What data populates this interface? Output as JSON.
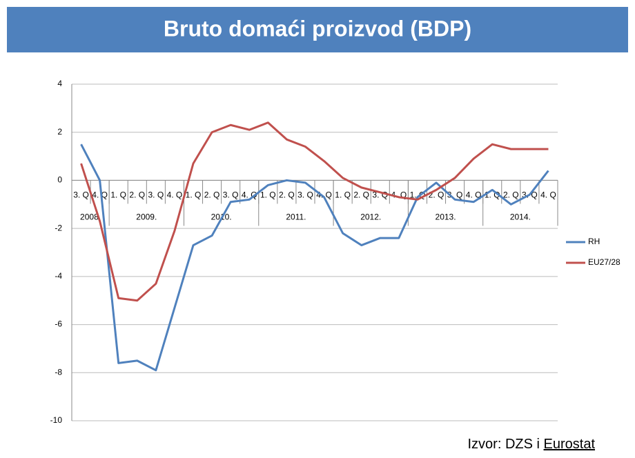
{
  "title": "Bruto domaći proizvod (BDP)",
  "source": "Izvor: DZS i",
  "source_link": "Eurostat",
  "chart_data": {
    "type": "line",
    "categories": [
      "3. Q",
      "4. Q",
      "1. Q",
      "2. Q",
      "3. Q",
      "4. Q",
      "1. Q",
      "2. Q",
      "3. Q",
      "4. Q",
      "1. Q",
      "2. Q",
      "3. Q",
      "4. Q",
      "1. Q",
      "2. Q",
      "3. Q",
      "4. Q",
      "1. Q",
      "2. Q",
      "3. Q",
      "4. Q",
      "1. Q",
      "2. Q",
      "3. Q",
      "4. Q"
    ],
    "category_groups": [
      {
        "label": "2008.",
        "size": 2
      },
      {
        "label": "2009.",
        "size": 4
      },
      {
        "label": "2010.",
        "size": 4
      },
      {
        "label": "2011.",
        "size": 4
      },
      {
        "label": "2012.",
        "size": 4
      },
      {
        "label": "2013.",
        "size": 4
      },
      {
        "label": "2014.",
        "size": 4
      }
    ],
    "series": [
      {
        "name": "RH",
        "color": "#4f81bd",
        "values": [
          1.5,
          0,
          -7.6,
          -7.5,
          -7.9,
          -5.3,
          -2.7,
          -2.3,
          -0.9,
          -0.8,
          -0.2,
          0,
          -0.1,
          -0.7,
          -2.2,
          -2.7,
          -2.4,
          -2.4,
          -0.7,
          -0.1,
          -0.8,
          -0.9,
          -0.4,
          -1.0,
          -0.6,
          0.4
        ]
      },
      {
        "name": "EU27/28",
        "color": "#c0504d",
        "values": [
          0.7,
          -1.7,
          -4.9,
          -5.0,
          -4.3,
          -2.1,
          0.7,
          2.0,
          2.3,
          2.1,
          2.4,
          1.7,
          1.4,
          0.8,
          0.1,
          -0.3,
          -0.5,
          -0.7,
          -0.8,
          -0.4,
          0.1,
          0.9,
          1.5,
          1.3,
          1.3,
          1.3
        ]
      }
    ],
    "ylim": [
      -10,
      4
    ],
    "yticks": [
      4,
      2,
      0,
      -2,
      -4,
      -6,
      -8,
      -10
    ],
    "grid": true,
    "legend": "right"
  }
}
